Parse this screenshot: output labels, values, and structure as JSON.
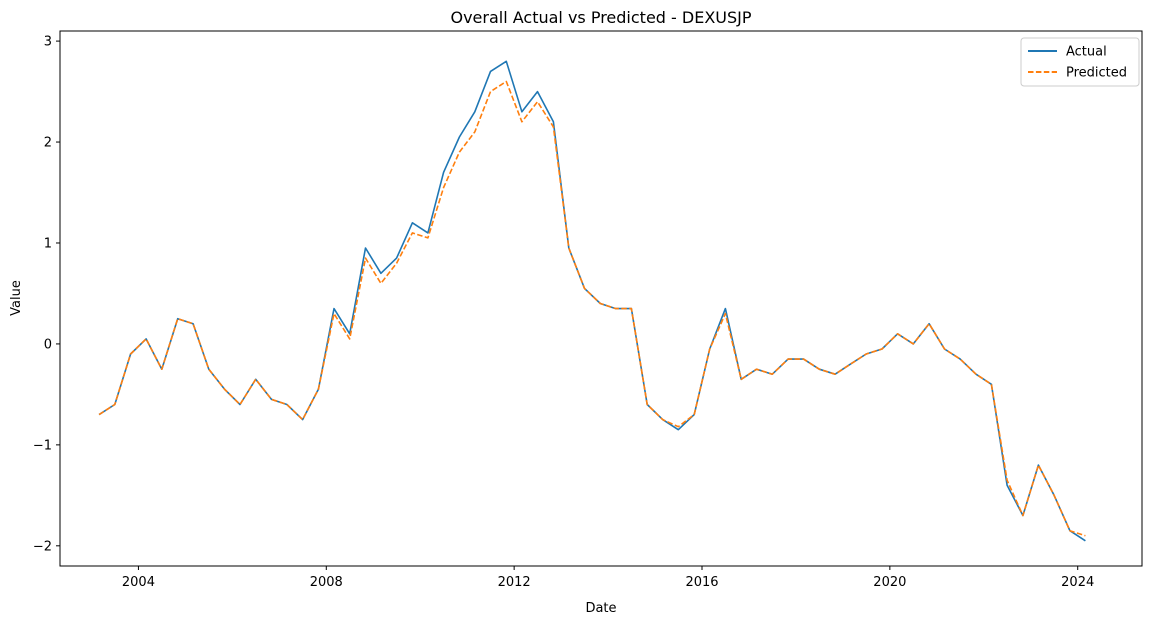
{
  "chart_data": {
    "type": "line",
    "title": "Overall Actual vs Predicted - DEXUSJP",
    "xlabel": "Date",
    "ylabel": "Value",
    "xlim": [
      "2002-05-01",
      "2025-05-15"
    ],
    "ylim": [
      -2.2,
      3.1
    ],
    "x_ticks": [
      {
        "date": "2004-01-01",
        "label": "2004"
      },
      {
        "date": "2008-01-01",
        "label": "2008"
      },
      {
        "date": "2012-01-01",
        "label": "2012"
      },
      {
        "date": "2016-01-01",
        "label": "2016"
      },
      {
        "date": "2020-01-01",
        "label": "2020"
      },
      {
        "date": "2024-01-01",
        "label": "2024"
      }
    ],
    "y_ticks": [
      {
        "value": -2,
        "label": "−2"
      },
      {
        "value": -1,
        "label": "−1"
      },
      {
        "value": 0,
        "label": "0"
      },
      {
        "value": 1,
        "label": "1"
      },
      {
        "value": 2,
        "label": "2"
      },
      {
        "value": 3,
        "label": "3"
      }
    ],
    "grid": false,
    "legend_position": "top-right",
    "x": [
      "2003-03-01",
      "2003-07-01",
      "2003-11-01",
      "2004-03-01",
      "2004-07-01",
      "2004-11-01",
      "2005-03-01",
      "2005-07-01",
      "2005-11-01",
      "2006-03-01",
      "2006-07-01",
      "2006-11-01",
      "2007-03-01",
      "2007-07-01",
      "2007-11-01",
      "2008-03-01",
      "2008-07-01",
      "2008-11-01",
      "2009-03-01",
      "2009-07-01",
      "2009-11-01",
      "2010-03-01",
      "2010-07-01",
      "2010-11-01",
      "2011-03-01",
      "2011-07-01",
      "2011-11-01",
      "2012-03-01",
      "2012-07-01",
      "2012-11-01",
      "2013-03-01",
      "2013-07-01",
      "2013-11-01",
      "2014-03-01",
      "2014-07-01",
      "2014-11-01",
      "2015-03-01",
      "2015-07-01",
      "2015-11-01",
      "2016-03-01",
      "2016-07-01",
      "2016-11-01",
      "2017-03-01",
      "2017-07-01",
      "2017-11-01",
      "2018-03-01",
      "2018-07-01",
      "2018-11-01",
      "2019-03-01",
      "2019-07-01",
      "2019-11-01",
      "2020-03-01",
      "2020-07-01",
      "2020-11-01",
      "2021-03-01",
      "2021-07-01",
      "2021-11-01",
      "2022-03-01",
      "2022-07-01",
      "2022-11-01",
      "2023-03-01",
      "2023-07-01",
      "2023-11-01",
      "2024-03-01"
    ],
    "series": [
      {
        "name": "Actual",
        "color": "#1f77b4",
        "dash": "solid",
        "values": [
          -0.7,
          -0.6,
          -0.1,
          0.05,
          -0.25,
          0.25,
          0.2,
          -0.25,
          -0.45,
          -0.6,
          -0.35,
          -0.55,
          -0.6,
          -0.75,
          -0.45,
          0.35,
          0.1,
          0.95,
          0.7,
          0.85,
          1.2,
          1.1,
          1.7,
          2.05,
          2.3,
          2.7,
          2.8,
          2.3,
          2.5,
          2.2,
          0.95,
          0.55,
          0.4,
          0.35,
          0.35,
          -0.6,
          -0.75,
          -0.85,
          -0.7,
          -0.05,
          0.35,
          -0.35,
          -0.25,
          -0.3,
          -0.15,
          -0.15,
          -0.25,
          -0.3,
          -0.2,
          -0.1,
          -0.05,
          0.1,
          0.0,
          0.2,
          -0.05,
          -0.15,
          -0.3,
          -0.4,
          -1.4,
          -1.7,
          -1.2,
          -1.5,
          -1.85,
          -1.95
        ]
      },
      {
        "name": "Predicted",
        "color": "#ff7f0e",
        "dash": "dashed",
        "values": [
          -0.7,
          -0.6,
          -0.1,
          0.05,
          -0.25,
          0.25,
          0.2,
          -0.25,
          -0.45,
          -0.6,
          -0.35,
          -0.55,
          -0.6,
          -0.75,
          -0.45,
          0.3,
          0.05,
          0.85,
          0.6,
          0.8,
          1.1,
          1.05,
          1.55,
          1.9,
          2.1,
          2.5,
          2.6,
          2.2,
          2.4,
          2.15,
          0.95,
          0.55,
          0.4,
          0.35,
          0.35,
          -0.6,
          -0.75,
          -0.82,
          -0.7,
          -0.05,
          0.3,
          -0.35,
          -0.25,
          -0.3,
          -0.15,
          -0.15,
          -0.25,
          -0.3,
          -0.2,
          -0.1,
          -0.05,
          0.1,
          0.0,
          0.2,
          -0.05,
          -0.15,
          -0.3,
          -0.4,
          -1.35,
          -1.7,
          -1.2,
          -1.5,
          -1.85,
          -1.9
        ]
      }
    ]
  }
}
